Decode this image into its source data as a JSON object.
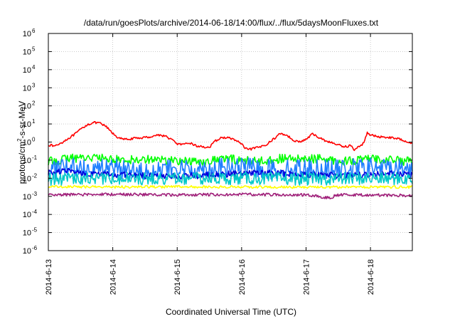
{
  "chart_data": {
    "type": "line",
    "title": "/data/run/goesPlots/archive/2014-06-18/14:00/flux/../flux/5daysMoonFluxes.txt",
    "xlabel": "Coordinated Universal Time (UTC)",
    "ylabel_parts": [
      "protons/cm",
      "2",
      "-s-sr-MeV"
    ],
    "y_scale": "log",
    "ylim": [
      1e-06,
      1000000.0
    ],
    "y_ticks": [
      {
        "base": "10",
        "exp": "-6",
        "value": -6
      },
      {
        "base": "10",
        "exp": "-5",
        "value": -5
      },
      {
        "base": "10",
        "exp": "-4",
        "value": -4
      },
      {
        "base": "10",
        "exp": "-3",
        "value": -3
      },
      {
        "base": "10",
        "exp": "-2",
        "value": -2
      },
      {
        "base": "10",
        "exp": "-1",
        "value": -1
      },
      {
        "base": "10",
        "exp": "0",
        "value": 0
      },
      {
        "base": "10",
        "exp": "1",
        "value": 1
      },
      {
        "base": "10",
        "exp": "2",
        "value": 2
      },
      {
        "base": "10",
        "exp": "3",
        "value": 3
      },
      {
        "base": "10",
        "exp": "4",
        "value": 4
      },
      {
        "base": "10",
        "exp": "5",
        "value": 5
      },
      {
        "base": "10",
        "exp": "6",
        "value": 6
      }
    ],
    "x_unit": "days",
    "xlim": [
      0,
      5.65
    ],
    "x_ticks": [
      {
        "label": "2014-6-13",
        "value": 0
      },
      {
        "label": "2014-6-14",
        "value": 1
      },
      {
        "label": "2014-6-15",
        "value": 2
      },
      {
        "label": "2014-6-16",
        "value": 3
      },
      {
        "label": "2014-6-17",
        "value": 4
      },
      {
        "label": "2014-6-18",
        "value": 5
      }
    ],
    "grid": true,
    "series": [
      {
        "color": "#ff0000",
        "noise": 0.06,
        "points": [
          [
            0,
            0.7
          ],
          [
            0.1,
            0.6
          ],
          [
            0.2,
            0.9
          ],
          [
            0.3,
            1.5
          ],
          [
            0.4,
            2.5
          ],
          [
            0.5,
            5
          ],
          [
            0.6,
            9
          ],
          [
            0.7,
            12
          ],
          [
            0.8,
            11
          ],
          [
            0.9,
            7
          ],
          [
            1.0,
            3
          ],
          [
            1.1,
            1.6
          ],
          [
            1.2,
            1.4
          ],
          [
            1.35,
            1.6
          ],
          [
            1.5,
            1.8
          ],
          [
            1.6,
            2.0
          ],
          [
            1.7,
            2.5
          ],
          [
            1.8,
            2.2
          ],
          [
            1.9,
            1.5
          ],
          [
            2.0,
            0.8
          ],
          [
            2.1,
            0.7
          ],
          [
            2.2,
            0.9
          ],
          [
            2.3,
            0.6
          ],
          [
            2.4,
            0.55
          ],
          [
            2.5,
            0.5
          ],
          [
            2.6,
            1.2
          ],
          [
            2.7,
            1.8
          ],
          [
            2.8,
            1.7
          ],
          [
            2.9,
            1.3
          ],
          [
            3.0,
            0.8
          ],
          [
            3.05,
            0.45
          ],
          [
            3.1,
            0.38
          ],
          [
            3.2,
            0.45
          ],
          [
            3.3,
            0.55
          ],
          [
            3.4,
            0.8
          ],
          [
            3.5,
            1.5
          ],
          [
            3.6,
            3
          ],
          [
            3.7,
            2.4
          ],
          [
            3.8,
            1.3
          ],
          [
            3.9,
            1.0
          ],
          [
            4.0,
            1.4
          ],
          [
            4.1,
            2.8
          ],
          [
            4.2,
            1.8
          ],
          [
            4.3,
            1.2
          ],
          [
            4.4,
            0.9
          ],
          [
            4.5,
            0.7
          ],
          [
            4.6,
            0.55
          ],
          [
            4.7,
            0.65
          ],
          [
            4.75,
            0.35
          ],
          [
            4.8,
            0.5
          ],
          [
            4.85,
            0.6
          ],
          [
            4.9,
            1.0
          ],
          [
            4.95,
            3.5
          ],
          [
            5.0,
            2.5
          ],
          [
            5.1,
            2.0
          ],
          [
            5.2,
            1.9
          ],
          [
            5.3,
            1.8
          ],
          [
            5.4,
            1.6
          ],
          [
            5.5,
            1.3
          ],
          [
            5.6,
            1.0
          ],
          [
            5.65,
            0.85
          ]
        ]
      },
      {
        "color": "#00ff00",
        "noise": 0.25,
        "points": [
          [
            0,
            0.08
          ],
          [
            0.3,
            0.12
          ],
          [
            0.6,
            0.15
          ],
          [
            0.9,
            0.12
          ],
          [
            1.2,
            0.1
          ],
          [
            1.5,
            0.12
          ],
          [
            1.8,
            0.1
          ],
          [
            2.1,
            0.09
          ],
          [
            2.4,
            0.08
          ],
          [
            2.7,
            0.12
          ],
          [
            3.0,
            0.1
          ],
          [
            3.3,
            0.09
          ],
          [
            3.6,
            0.12
          ],
          [
            3.9,
            0.11
          ],
          [
            4.2,
            0.12
          ],
          [
            4.5,
            0.09
          ],
          [
            4.8,
            0.1
          ],
          [
            5.1,
            0.12
          ],
          [
            5.4,
            0.1
          ],
          [
            5.65,
            0.08
          ]
        ]
      },
      {
        "color": "#1f7fff",
        "noise": 0.55,
        "points": [
          [
            0,
            0.03
          ],
          [
            0.5,
            0.04
          ],
          [
            1.0,
            0.035
          ],
          [
            1.5,
            0.03
          ],
          [
            2.0,
            0.03
          ],
          [
            2.5,
            0.035
          ],
          [
            3.0,
            0.04
          ],
          [
            3.5,
            0.03
          ],
          [
            4.0,
            0.035
          ],
          [
            4.5,
            0.03
          ],
          [
            5.0,
            0.04
          ],
          [
            5.65,
            0.035
          ]
        ]
      },
      {
        "color": "#0000dd",
        "noise": 0.18,
        "points": [
          [
            0,
            0.02
          ],
          [
            0.3,
            0.025
          ],
          [
            0.6,
            0.018
          ],
          [
            1.0,
            0.015
          ],
          [
            1.5,
            0.014
          ],
          [
            2.0,
            0.013
          ],
          [
            2.5,
            0.015
          ],
          [
            3.0,
            0.018
          ],
          [
            3.5,
            0.02
          ],
          [
            4.0,
            0.016
          ],
          [
            4.5,
            0.014
          ],
          [
            5.0,
            0.015
          ],
          [
            5.3,
            0.018
          ],
          [
            5.65,
            0.016
          ]
        ]
      },
      {
        "color": "#00c8c8",
        "noise": 0.35,
        "points": [
          [
            0,
            0.009
          ],
          [
            1.0,
            0.01
          ],
          [
            2.0,
            0.009
          ],
          [
            3.0,
            0.01
          ],
          [
            4.0,
            0.009
          ],
          [
            5.0,
            0.01
          ],
          [
            5.65,
            0.009
          ]
        ]
      },
      {
        "color": "#ffff00",
        "noise": 0.07,
        "points": [
          [
            0,
            0.0035
          ],
          [
            1.0,
            0.0033
          ],
          [
            2.0,
            0.0034
          ],
          [
            3.0,
            0.0033
          ],
          [
            4.0,
            0.0032
          ],
          [
            5.0,
            0.0033
          ],
          [
            5.65,
            0.0032
          ]
        ]
      },
      {
        "color": "#a0207a",
        "noise": 0.08,
        "points": [
          [
            0,
            0.0012
          ],
          [
            1.0,
            0.0013
          ],
          [
            2.0,
            0.0012
          ],
          [
            3.0,
            0.0013
          ],
          [
            4.0,
            0.0012
          ],
          [
            4.4,
            0.0008
          ],
          [
            4.45,
            0.0012
          ],
          [
            5.0,
            0.0012
          ],
          [
            5.65,
            0.0011
          ]
        ]
      }
    ]
  }
}
